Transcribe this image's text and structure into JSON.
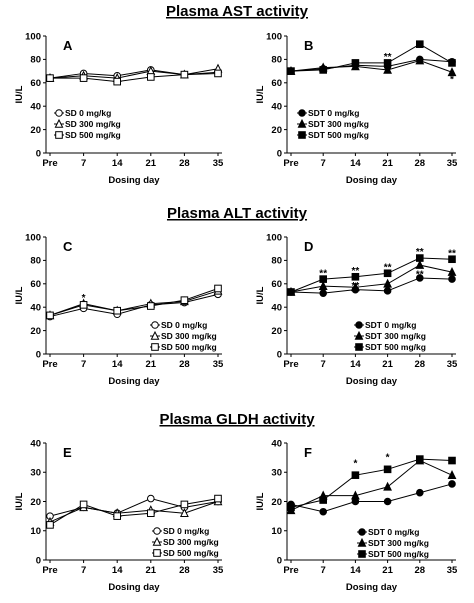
{
  "x_categories": [
    "Pre",
    "7",
    "14",
    "21",
    "28",
    "35"
  ],
  "xlabel": "Dosing day",
  "ylabel": "IU/L",
  "colors": {
    "ink": "#000000",
    "open_fill": "#ffffff"
  },
  "chart_data": [
    {
      "type": "line",
      "section_title": "Plasma AST activity",
      "panel": "A",
      "categories": [
        "Pre",
        "7",
        "14",
        "21",
        "28",
        "35"
      ],
      "ylim": [
        0,
        100
      ],
      "yticks": [
        0,
        20,
        40,
        60,
        80,
        100
      ],
      "series": [
        {
          "name": "SD 0 mg/kg",
          "marker": "circle",
          "filled": false,
          "values": [
            64,
            68,
            66,
            71,
            67,
            69
          ]
        },
        {
          "name": "SD 300 mg/kg",
          "marker": "triangle",
          "filled": false,
          "values": [
            64,
            66,
            64,
            70,
            67,
            72
          ]
        },
        {
          "name": "SD 500 mg/kg",
          "marker": "square",
          "filled": false,
          "values": [
            64,
            64,
            61,
            65,
            67,
            68
          ]
        }
      ],
      "annotations": []
    },
    {
      "type": "line",
      "section_title": "",
      "panel": "B",
      "categories": [
        "Pre",
        "7",
        "14",
        "21",
        "28",
        "35"
      ],
      "ylim": [
        0,
        100
      ],
      "yticks": [
        0,
        20,
        40,
        60,
        80,
        100
      ],
      "series": [
        {
          "name": "SDT 0 mg/kg",
          "marker": "circle",
          "filled": true,
          "values": [
            70,
            72,
            75,
            74,
            80,
            78
          ]
        },
        {
          "name": "SDT 300 mg/kg",
          "marker": "triangle",
          "filled": true,
          "values": [
            70,
            73,
            74,
            71,
            79,
            69
          ]
        },
        {
          "name": "SDT 500 mg/kg",
          "marker": "square",
          "filled": true,
          "values": [
            70,
            71,
            77,
            77,
            93,
            77
          ]
        }
      ],
      "annotations": [
        {
          "x": "21",
          "y": 82,
          "text": "**"
        },
        {
          "x": "35",
          "y": 63,
          "text": "*"
        }
      ]
    },
    {
      "type": "line",
      "section_title": "Plasma ALT activity",
      "panel": "C",
      "categories": [
        "Pre",
        "7",
        "14",
        "21",
        "28",
        "35"
      ],
      "ylim": [
        0,
        100
      ],
      "yticks": [
        0,
        20,
        40,
        60,
        80,
        100
      ],
      "series": [
        {
          "name": "SD 0 mg/kg",
          "marker": "circle",
          "filled": false,
          "values": [
            32,
            39,
            34,
            42,
            44,
            51
          ]
        },
        {
          "name": "SD 300 mg/kg",
          "marker": "triangle",
          "filled": false,
          "values": [
            33,
            43,
            37,
            43,
            45,
            54
          ]
        },
        {
          "name": "SD 500 mg/kg",
          "marker": "square",
          "filled": false,
          "values": [
            33,
            42,
            37,
            41,
            46,
            56
          ]
        }
      ],
      "annotations": [
        {
          "x": "7",
          "y": 48,
          "text": "*"
        }
      ]
    },
    {
      "type": "line",
      "section_title": "",
      "panel": "D",
      "categories": [
        "Pre",
        "7",
        "14",
        "21",
        "28",
        "35"
      ],
      "ylim": [
        0,
        100
      ],
      "yticks": [
        0,
        20,
        40,
        60,
        80,
        100
      ],
      "series": [
        {
          "name": "SDT 0 mg/kg",
          "marker": "circle",
          "filled": true,
          "values": [
            53,
            52,
            55,
            54,
            65,
            64
          ]
        },
        {
          "name": "SDT 300 mg/kg",
          "marker": "triangle",
          "filled": true,
          "values": [
            53,
            58,
            57,
            60,
            76,
            70
          ]
        },
        {
          "name": "SDT 500 mg/kg",
          "marker": "square",
          "filled": true,
          "values": [
            53,
            64,
            66,
            69,
            82,
            81
          ]
        }
      ],
      "annotations": [
        {
          "x": "7",
          "y": 69,
          "text": "**"
        },
        {
          "x": "14",
          "y": 71,
          "text": "**"
        },
        {
          "x": "21",
          "y": 74,
          "text": "**"
        },
        {
          "x": "28",
          "y": 87,
          "text": "**"
        },
        {
          "x": "35",
          "y": 86,
          "text": "**"
        },
        {
          "x": "14",
          "y": 58,
          "text": "**"
        },
        {
          "x": "21",
          "y": 58,
          "text": "*"
        },
        {
          "x": "28",
          "y": 68,
          "text": "**"
        }
      ]
    },
    {
      "type": "line",
      "section_title": "Plasma GLDH activity",
      "panel": "E",
      "categories": [
        "Pre",
        "7",
        "14",
        "21",
        "28",
        "35"
      ],
      "ylim": [
        0,
        40
      ],
      "yticks": [
        0,
        10,
        20,
        30,
        40
      ],
      "series": [
        {
          "name": "SD 0 mg/kg",
          "marker": "circle",
          "filled": false,
          "values": [
            15,
            18,
            16,
            21,
            18,
            20
          ]
        },
        {
          "name": "SD 300 mg/kg",
          "marker": "triangle",
          "filled": false,
          "values": [
            13,
            18,
            16,
            17,
            16,
            20
          ]
        },
        {
          "name": "SD 500 mg/kg",
          "marker": "square",
          "filled": false,
          "values": [
            12,
            19,
            15,
            16,
            19,
            21
          ]
        }
      ],
      "annotations": []
    },
    {
      "type": "line",
      "section_title": "",
      "panel": "F",
      "categories": [
        "Pre",
        "7",
        "14",
        "21",
        "28",
        "35"
      ],
      "ylim": [
        0,
        40
      ],
      "yticks": [
        0,
        10,
        20,
        30,
        40
      ],
      "series": [
        {
          "name": "SDT 0 mg/kg",
          "marker": "circle",
          "filled": true,
          "values": [
            19,
            16.5,
            20,
            20,
            23,
            26
          ]
        },
        {
          "name": "SDT 300 mg/kg",
          "marker": "triangle",
          "filled": true,
          "values": [
            17,
            22,
            22,
            25,
            34,
            29
          ]
        },
        {
          "name": "SDT 500 mg/kg",
          "marker": "square",
          "filled": true,
          "values": [
            18,
            20.5,
            29,
            31,
            34.5,
            34
          ]
        }
      ],
      "annotations": [
        {
          "x": "14",
          "y": 33,
          "text": "*"
        },
        {
          "x": "21",
          "y": 35,
          "text": "*"
        }
      ]
    }
  ]
}
